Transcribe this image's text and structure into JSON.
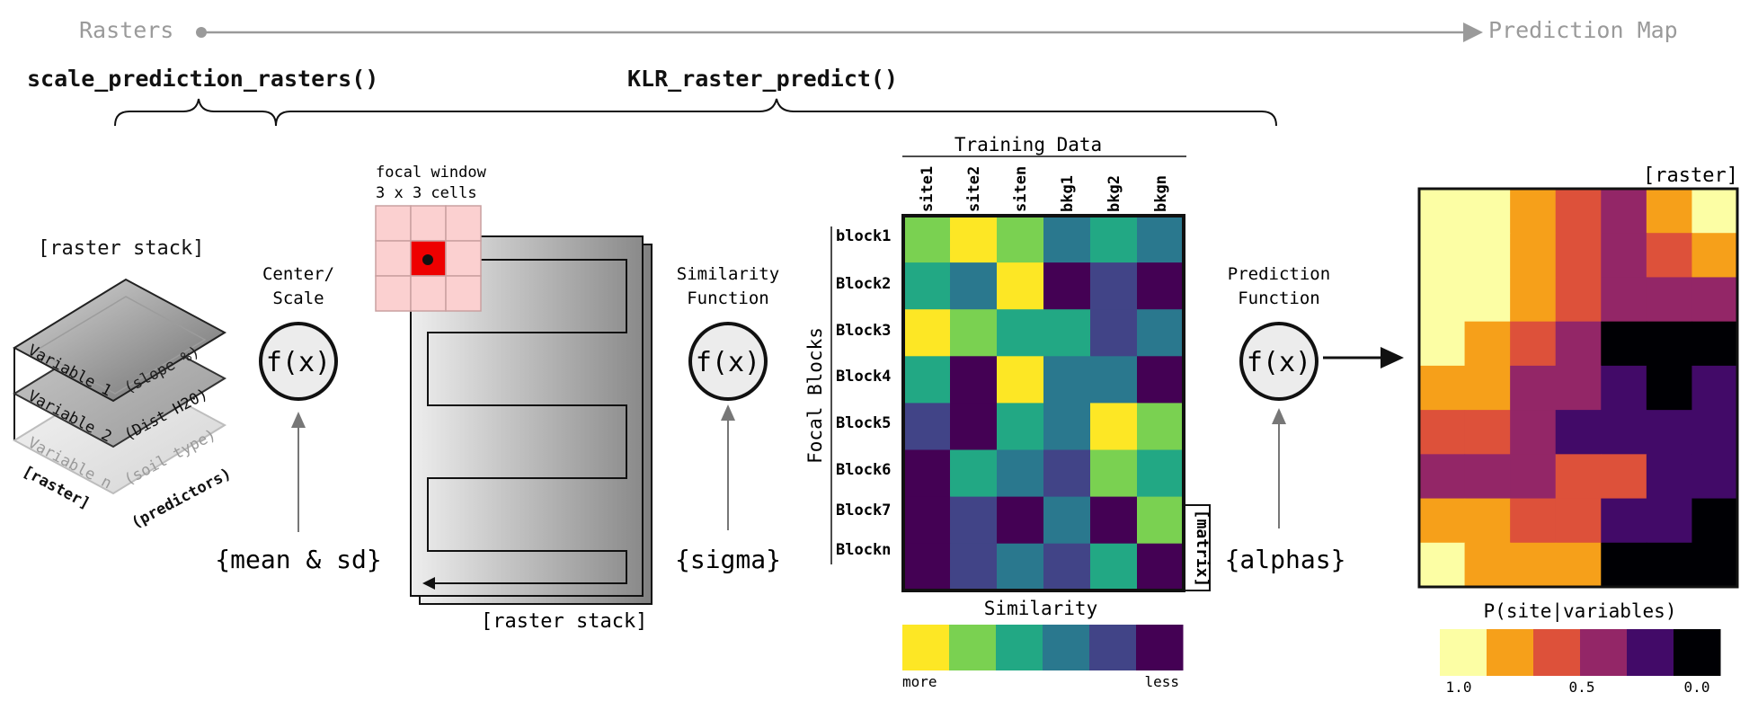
{
  "header": {
    "start_label": "Rasters",
    "end_label": "Prediction Map",
    "func1": "scale_prediction_rasters()",
    "func2": "KLR_raster_predict()"
  },
  "stack": {
    "title": "[raster stack]",
    "layers": [
      {
        "name": "Variable 1",
        "desc": "(slope %)"
      },
      {
        "name": "Variable 2",
        "desc": "(Dist H20)"
      },
      {
        "name": "Variable n",
        "desc": "(soil type)"
      }
    ],
    "footer_left": "[raster]",
    "footer_right": "(predictors)"
  },
  "center": {
    "label1": "Center/",
    "label2": "Scale",
    "fx": "f(x)",
    "param": "{mean & sd}"
  },
  "focal": {
    "label1": "focal window",
    "label2": "3 x 3 cells",
    "stack_label": "[raster stack]"
  },
  "similarity": {
    "label1": "Similarity",
    "label2": "Function",
    "fx": "f(x)",
    "param": "{sigma}"
  },
  "matrix": {
    "title": "Training Data",
    "columns": [
      "site1",
      "site2",
      "siten",
      "bkg1",
      "bkg2",
      "bkgn"
    ],
    "rows": [
      "block1",
      "Block2",
      "Block3",
      "Block4",
      "Block5",
      "Block6",
      "Block7",
      "Blockn"
    ],
    "row_axis_label": "Focal Blocks",
    "side_label": "[matrix]",
    "cells": [
      [
        1,
        0,
        1,
        3,
        2,
        3
      ],
      [
        2,
        3,
        0,
        5,
        4,
        5
      ],
      [
        0,
        1,
        2,
        2,
        4,
        3
      ],
      [
        2,
        5,
        0,
        3,
        3,
        5
      ],
      [
        4,
        5,
        2,
        3,
        0,
        1
      ],
      [
        5,
        2,
        3,
        4,
        1,
        2
      ],
      [
        5,
        4,
        5,
        3,
        5,
        1
      ],
      [
        5,
        4,
        3,
        4,
        2,
        5
      ]
    ],
    "palette": [
      "#fde725",
      "#7ad151",
      "#22a884",
      "#2a788e",
      "#414487",
      "#440154"
    ],
    "legend_title": "Similarity",
    "legend_left": "more",
    "legend_right": "less"
  },
  "prediction": {
    "label1": "Prediction",
    "label2": "Function",
    "fx": "f(x)",
    "param": "{alphas}"
  },
  "output": {
    "title": "[raster]",
    "cells": [
      [
        0,
        0,
        1,
        2,
        3,
        1,
        0
      ],
      [
        0,
        0,
        1,
        2,
        3,
        2,
        1
      ],
      [
        0,
        0,
        1,
        2,
        3,
        3,
        3
      ],
      [
        0,
        1,
        2,
        3,
        5,
        5,
        5
      ],
      [
        1,
        1,
        3,
        3,
        4,
        5,
        4
      ],
      [
        2,
        2,
        3,
        4,
        4,
        4,
        4
      ],
      [
        3,
        3,
        3,
        2,
        2,
        4,
        4
      ],
      [
        1,
        1,
        2,
        2,
        4,
        4,
        5
      ],
      [
        0,
        1,
        1,
        1,
        5,
        5,
        5
      ]
    ],
    "palette": [
      "#fcfea4",
      "#f6a01a",
      "#dd513a",
      "#932667",
      "#420a68",
      "#000004"
    ],
    "legend_title": "P(site|variables)",
    "legend_ticks": [
      "1.0",
      "0.5",
      "0.0"
    ]
  }
}
